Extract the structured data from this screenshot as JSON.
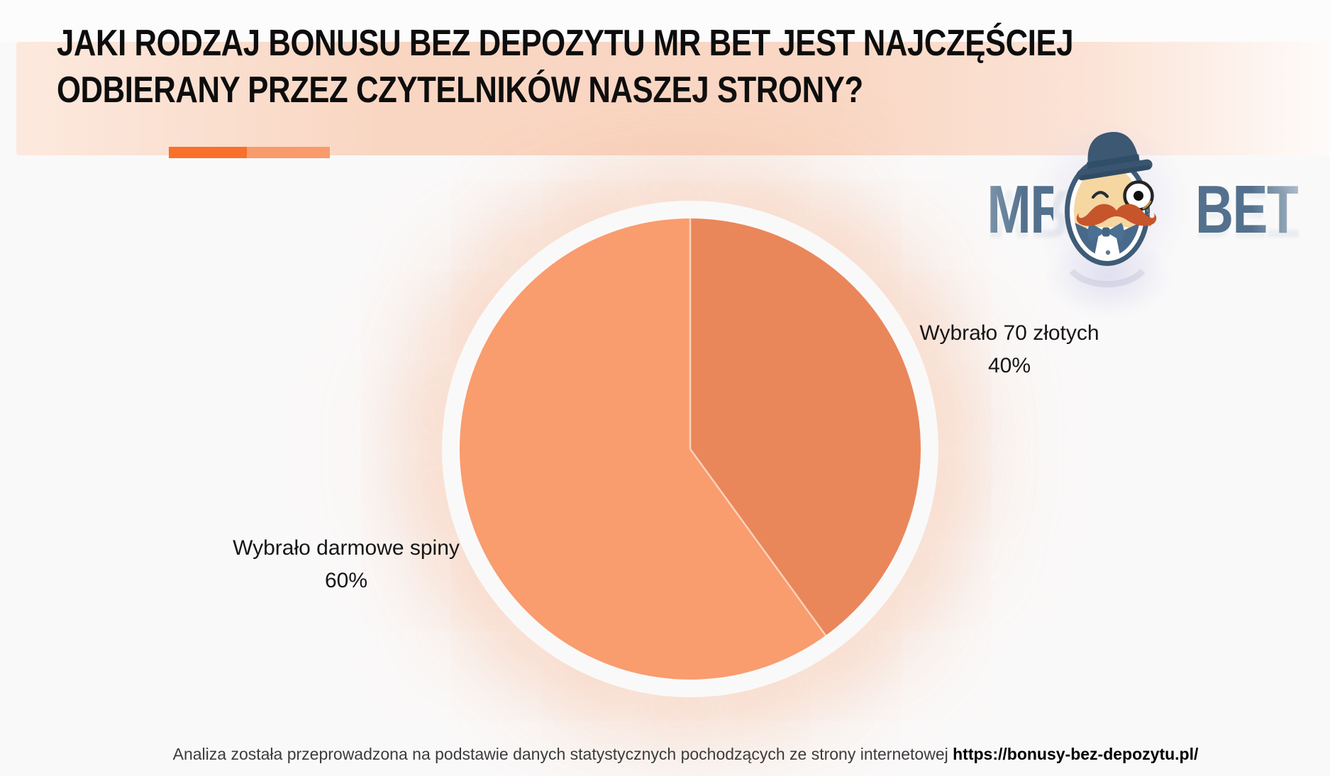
{
  "header": {
    "title_line1": "JAKI RODZAJ BONUSU BEZ DEPOZYTU MR BET JEST NAJCZĘŚCIEJ",
    "title_line2": "ODBIERANY PRZEZ CZYTELNIKÓW NASZEJ STRONY?",
    "accent_bar_colors": [
      "#F8702B",
      "#F99A6B"
    ]
  },
  "brand": {
    "name": "Mr Bet",
    "word_left": "MR",
    "word_right": "BET",
    "text_color": "#53718E"
  },
  "chart_data": {
    "type": "pie",
    "title": "Jaki rodzaj bonusu bez depozytu Mr Bet jest najczęściej odbierany przez czytelników naszej strony?",
    "unit": "%",
    "start_angle_deg": 0,
    "direction": "clockwise",
    "legend_position": "outside-labels",
    "slices": [
      {
        "label": "Wybrało 70 złotych",
        "value": 40,
        "pct_label": "40%",
        "color": "#E9875A"
      },
      {
        "label": "Wybrało darmowe spiny",
        "value": 60,
        "pct_label": "60%",
        "color": "#F99C6E"
      }
    ],
    "separator_color": "#FBD2BB"
  },
  "footer": {
    "text": "Analiza została przeprowadzona na podstawie danych statystycznych pochodzących ze strony internetowej",
    "link": "https://bonusy-bez-depozytu.pl/"
  }
}
